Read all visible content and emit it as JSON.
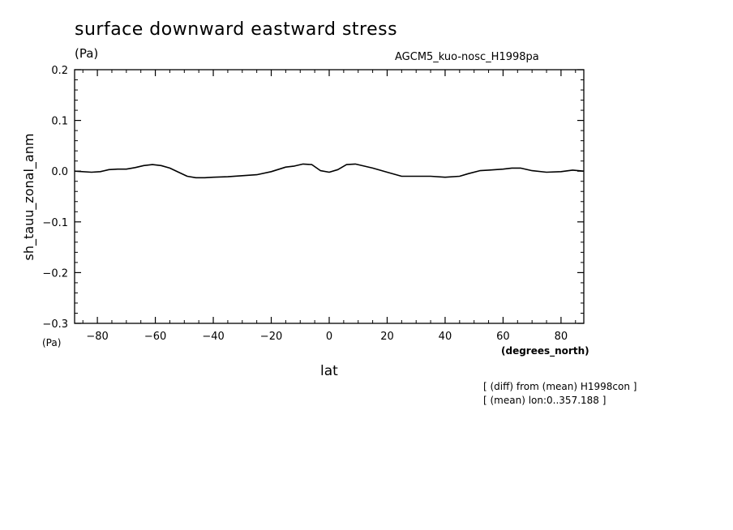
{
  "header": {
    "title": "surface downward eastward stress",
    "units": "(Pa)",
    "run_name": "AGCM5_kuo-nosc_H1998pa"
  },
  "axes": {
    "ylabel": "sh_tauu_zonal_anm",
    "yunit": "(Pa)",
    "xlabel": "lat",
    "xunit": "(degrees_north)"
  },
  "notes": [
    "[ (diff) from (mean) H1998con ]",
    "[ (mean) lon:0..357.188 ]"
  ],
  "chart_data": {
    "type": "line",
    "title": "surface downward eastward stress",
    "xlabel": "lat",
    "ylabel": "sh_tauu_zonal_anm",
    "xlim": [
      -87.86,
      87.86
    ],
    "ylim": [
      -0.3,
      0.2
    ],
    "xticks": [
      -80,
      -60,
      -40,
      -20,
      0,
      20,
      40,
      60,
      80
    ],
    "xtick_labels": [
      "−80",
      "−60",
      "−40",
      "−20",
      "0",
      "20",
      "40",
      "60",
      "80"
    ],
    "yticks": [
      0.2,
      0.1,
      0.0,
      -0.1,
      -0.2,
      -0.3
    ],
    "ytick_labels": [
      "0.2",
      "0.1",
      "0.0",
      "−0.1",
      "−0.2",
      "−0.3"
    ],
    "series": [
      {
        "x": [
          -87.9,
          -82,
          -79,
          -76,
          -73,
          -70,
          -67,
          -64,
          -61,
          -58,
          -55,
          -52,
          -49,
          -46,
          -43,
          -40,
          -35,
          -30,
          -25,
          -20,
          -15,
          -12,
          -9,
          -6,
          -3,
          0,
          3,
          6,
          9,
          12,
          15,
          20,
          25,
          28,
          35,
          40,
          45,
          48,
          52,
          55,
          60,
          63,
          66,
          70,
          75,
          80,
          84,
          87.9
        ],
        "y": [
          0.0,
          -0.002,
          -0.001,
          0.003,
          0.004,
          0.004,
          0.007,
          0.011,
          0.013,
          0.011,
          0.006,
          -0.002,
          -0.01,
          -0.013,
          -0.013,
          -0.012,
          -0.011,
          -0.009,
          -0.007,
          -0.001,
          0.008,
          0.01,
          0.014,
          0.013,
          0.001,
          -0.002,
          0.003,
          0.013,
          0.014,
          0.01,
          0.006,
          -0.002,
          -0.01,
          -0.01,
          -0.01,
          -0.012,
          -0.01,
          -0.005,
          0.001,
          0.002,
          0.004,
          0.006,
          0.006,
          0.001,
          -0.002,
          -0.001,
          0.002,
          0.0
        ]
      }
    ],
    "grid": false,
    "colors": {
      "line": "#000000",
      "frame": "#000000",
      "background": "#ffffff"
    }
  }
}
